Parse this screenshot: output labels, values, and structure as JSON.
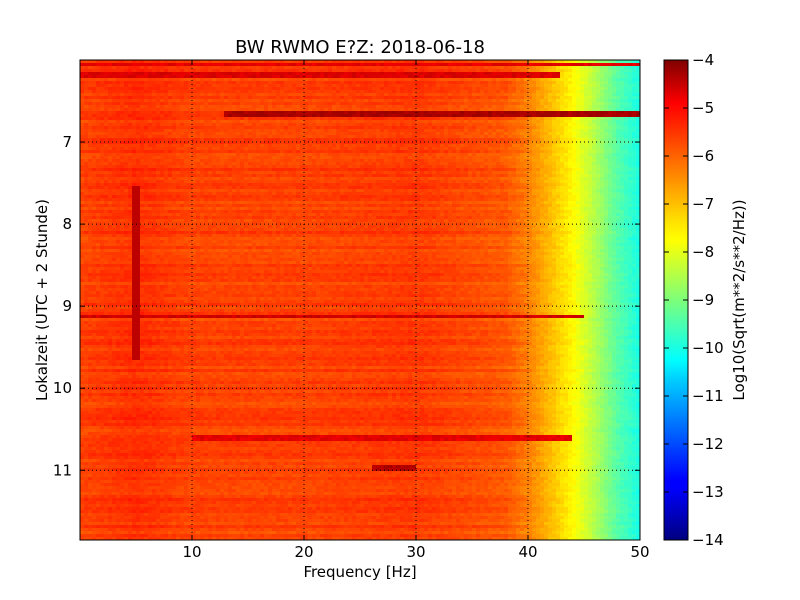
{
  "chart_data": {
    "type": "heatmap",
    "title": "BW RWMO E?Z: 2018-06-18",
    "xlabel": "Frequency [Hz]",
    "ylabel": "Lokalzeit (UTC + 2 Stunde)",
    "colorbar_label": "Log10(Sqrt(m**2/s**2/Hz))",
    "colormap": "jet",
    "xlim": [
      0,
      50
    ],
    "ylim": [
      6.0,
      11.85
    ],
    "y_inverted": true,
    "x_ticks": [
      10,
      20,
      30,
      40,
      50
    ],
    "x_tick_labels": [
      "10",
      "20",
      "30",
      "40",
      "50"
    ],
    "y_ticks": [
      7,
      8,
      9,
      10,
      11
    ],
    "y_tick_labels": [
      "7",
      "8",
      "9",
      "10",
      "11"
    ],
    "colorbar_range": [
      -14,
      -4
    ],
    "colorbar_ticks": [
      -4,
      -5,
      -6,
      -7,
      -8,
      -9,
      -10,
      -11,
      -12,
      -13,
      -14
    ],
    "colorbar_tick_labels": [
      "−4",
      "−5",
      "−6",
      "−7",
      "−8",
      "−9",
      "−10",
      "−11",
      "−12",
      "−13",
      "−14"
    ],
    "grid": true,
    "baseline_profile": {
      "frequency": [
        0,
        5,
        10,
        20,
        30,
        38,
        40,
        42,
        44,
        46,
        48,
        50
      ],
      "value": [
        -5.9,
        -5.7,
        -5.9,
        -5.9,
        -5.8,
        -6.1,
        -6.5,
        -7.1,
        -7.7,
        -8.5,
        -9.4,
        -10.0
      ]
    },
    "strong_bands": [
      {
        "time": 6.05,
        "value": -5.0,
        "f_from": 0,
        "f_to": 50
      },
      {
        "time": 6.18,
        "value": -4.9,
        "f_from": 0,
        "f_to": 43
      },
      {
        "time": 6.65,
        "value": -4.4,
        "f_from": 13,
        "f_to": 50
      },
      {
        "time": 9.13,
        "value": -4.8,
        "f_from": 0,
        "f_to": 45
      },
      {
        "time": 10.6,
        "value": -5.0,
        "f_from": 10,
        "f_to": 44
      },
      {
        "time": 10.98,
        "value": -4.5,
        "f_from": 26,
        "f_to": 30
      }
    ],
    "vertical_line": {
      "frequency": 5.0,
      "time_from": 7.55,
      "time_to": 9.65,
      "value": -4.6
    }
  }
}
